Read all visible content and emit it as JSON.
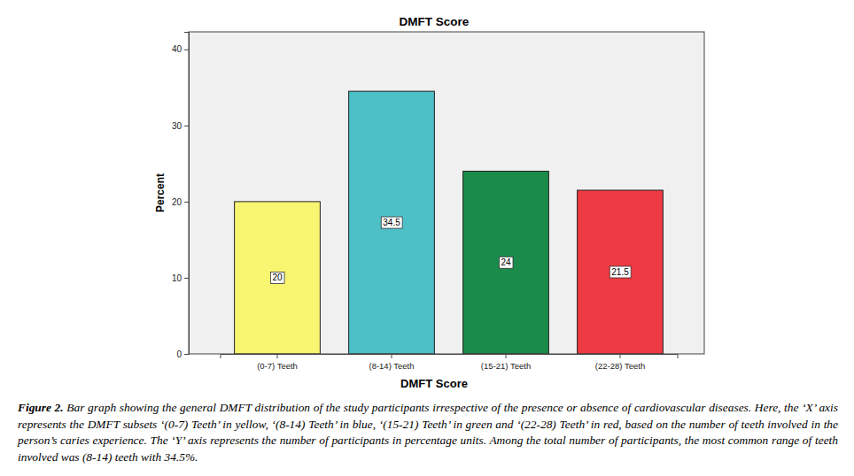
{
  "chart_data": {
    "type": "bar",
    "title": "DMFT Score",
    "x_label": "DMFT Score",
    "y_label": "Percent",
    "categories": [
      "(0-7) Teeth",
      "(8-14) Teeth",
      "(15-21) Teeth",
      "(22-28) Teeth"
    ],
    "values": [
      20,
      34.5,
      24,
      21.5
    ],
    "colors": [
      "#f8f571",
      "#4dbfc7",
      "#1b8b4b",
      "#ee3a43"
    ],
    "ylim": [
      0,
      42.3
    ],
    "yticks": [
      0,
      10,
      20,
      30,
      40
    ],
    "grid": false,
    "data_labels": true
  },
  "caption_label": "Figure 2.",
  "caption": "Bar graph showing the general DMFT distribution of the study participants irrespective of the presence or absence of cardiovascular diseases. Here, the ‘X’ axis represents the DMFT subsets ‘(0-7) Teeth’ in yellow, ‘(8-14) Teeth’ in blue, ‘(15-21) Teeth’ in green and ‘(22-28) Teeth’ in red, based on the number of teeth involved in the person’s caries experience. The ‘Y’ axis represents the number of participants in percentage units. Among the total number of participants, the most common range of teeth involved was (8-14) teeth with 34.5%."
}
